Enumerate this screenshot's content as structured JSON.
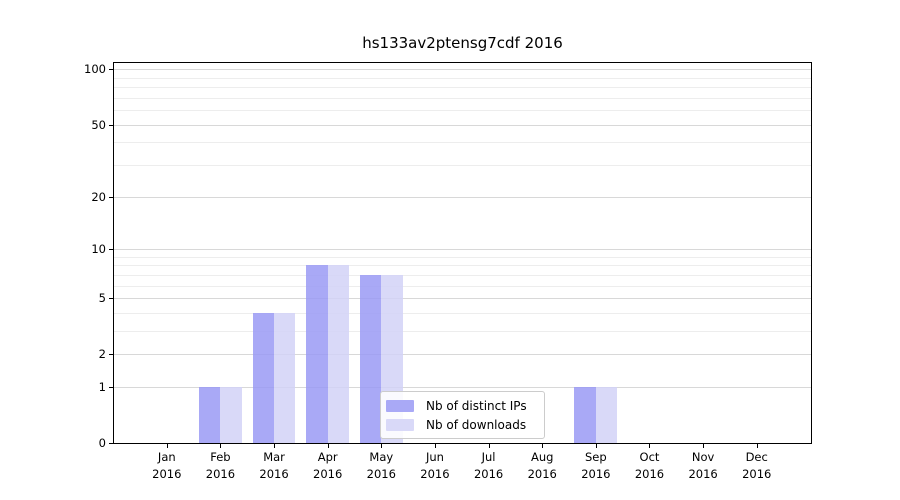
{
  "chart_data": {
    "type": "bar",
    "title": "hs133av2ptensg7cdf 2016",
    "year_label": "2016",
    "categories": [
      "Jan",
      "Feb",
      "Mar",
      "Apr",
      "May",
      "Jun",
      "Jul",
      "Aug",
      "Sep",
      "Oct",
      "Nov",
      "Dec"
    ],
    "series": [
      {
        "name": "Nb of distinct IPs",
        "color": "#9a9af5",
        "values": [
          0,
          1,
          4,
          8,
          7,
          0,
          0,
          0,
          1,
          0,
          0,
          0
        ]
      },
      {
        "name": "Nb of downloads",
        "color": "#d2d2f7",
        "values": [
          0,
          1,
          4,
          8,
          7,
          0,
          0,
          0,
          1,
          0,
          0,
          0
        ]
      }
    ],
    "fill_opacity": 0.85,
    "y_axis": {
      "scale": "log10(1+v)",
      "tick_values": [
        0,
        1,
        2,
        5,
        10,
        20,
        50,
        100
      ],
      "minor_gridlines": [
        3,
        4,
        6,
        7,
        8,
        9,
        30,
        40,
        60,
        70,
        80,
        90
      ],
      "range": [
        0,
        110
      ]
    },
    "grid": {
      "major_color": "#d8d8d8",
      "minor_color": "#ededed",
      "vertical": false
    },
    "legend": {
      "location": "lower center"
    }
  }
}
